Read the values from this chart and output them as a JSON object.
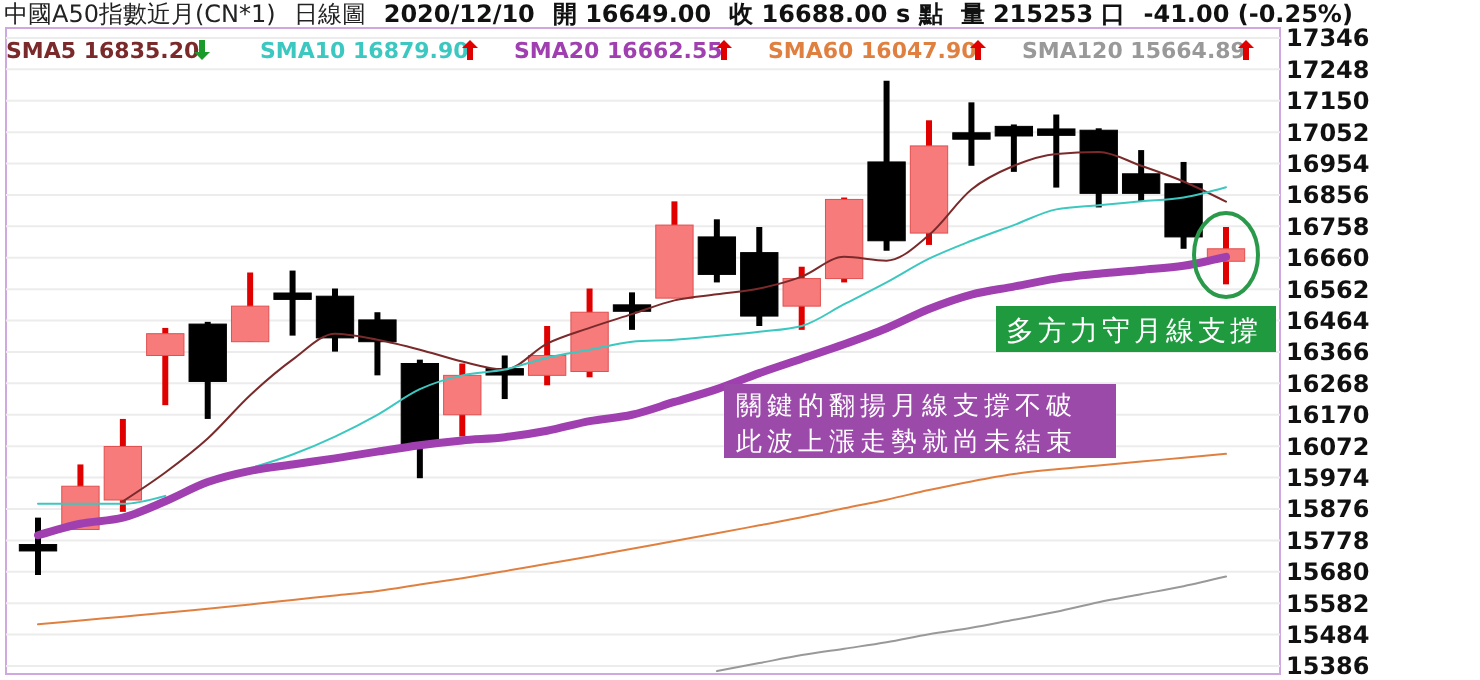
{
  "chart_data": {
    "type": "candlestick",
    "title": "中國A50指數近月(CN*1)",
    "subtitle": "日線圖",
    "annotations": [
      "2020/12/10",
      "開 16649.00",
      "收 16688.00 s 點",
      "量 215253 口",
      "-41.00 (-0.25%)",
      "關鍵的翻揚月線支撐不破",
      "此波上漲走勢就尚未結束",
      "多方力守月線支撐"
    ],
    "categories": [
      null,
      null,
      null,
      null,
      null,
      null,
      null,
      null,
      null,
      null,
      null,
      null,
      null,
      null,
      null,
      null,
      null,
      null,
      null,
      null,
      null,
      null,
      null,
      null,
      null,
      null,
      null,
      null,
      null
    ],
    "ohlc": [
      [
        15765,
        15849,
        15670,
        15745
      ],
      [
        15812,
        16015,
        15812,
        15947
      ],
      [
        15904,
        16157,
        15867,
        16071
      ],
      [
        16355,
        16441,
        16200,
        16423
      ],
      [
        16453,
        16460,
        16157,
        16274
      ],
      [
        16398,
        16614,
        16398,
        16509
      ],
      [
        16550,
        16620,
        16417,
        16530
      ],
      [
        16540,
        16564,
        16367,
        16410
      ],
      [
        16466,
        16490,
        16293,
        16398
      ],
      [
        16330,
        16342,
        15972,
        16077
      ],
      [
        16170,
        16330,
        16102,
        16293
      ],
      [
        16314,
        16355,
        16219,
        16294
      ],
      [
        16293,
        16447,
        16262,
        16355
      ],
      [
        16305,
        16564,
        16287,
        16490
      ],
      [
        16513,
        16552,
        16435,
        16493
      ],
      [
        16534,
        16836,
        16534,
        16762
      ],
      [
        16725,
        16780,
        16583,
        16608
      ],
      [
        16676,
        16756,
        16447,
        16478
      ],
      [
        16509,
        16632,
        16435,
        16595
      ],
      [
        16595,
        16848,
        16583,
        16842
      ],
      [
        16959,
        17212,
        16682,
        16713
      ],
      [
        16737,
        17089,
        16700,
        17009
      ],
      [
        17050,
        17145,
        16947,
        17030
      ],
      [
        17070,
        17076,
        16928,
        17040
      ],
      [
        17062,
        17107,
        16879,
        17042
      ],
      [
        17058,
        17064,
        16817,
        16861
      ],
      [
        16922,
        16996,
        16836,
        16861
      ],
      [
        16891,
        16959,
        16688,
        16725
      ],
      [
        16649,
        16756,
        16577,
        16688
      ]
    ],
    "series": [
      {
        "name": "SMA5 16835.20",
        "type": "line",
        "color": "#7a2a2a",
        "values": [
          null,
          null,
          15900,
          15990,
          16096,
          16231,
          16342,
          16423,
          16404,
          16373,
          16336,
          16311,
          16392,
          16441,
          16484,
          16527,
          16546,
          16564,
          16601,
          16663,
          16651,
          16731,
          16873,
          16947,
          16984,
          16990,
          16947,
          16898,
          16835
        ]
      },
      {
        "name": "SMA10 16879.90",
        "type": "line",
        "color": "#3cc8c0",
        "values": [
          15892,
          15892,
          15892,
          15917,
          null,
          16003,
          16046,
          16102,
          16170,
          16250,
          16293,
          16311,
          16348,
          16373,
          16398,
          16404,
          16416,
          16429,
          16447,
          16515,
          16583,
          16657,
          16713,
          16762,
          16811,
          16824,
          16836,
          16848,
          16880
        ]
      },
      {
        "name": "SMA20 16662.55",
        "type": "line",
        "color": "#a040b0",
        "values": [
          15794,
          15830,
          15849,
          15900,
          15960,
          15995,
          16015,
          16034,
          16055,
          16075,
          16090,
          16100,
          16120,
          16150,
          16170,
          16210,
          16250,
          16300,
          16345,
          16390,
          16440,
          16500,
          16545,
          16570,
          16595,
          16610,
          16622,
          16635,
          16663
        ]
      },
      {
        "name": "SMA60 16047.90",
        "type": "line",
        "color": "#e08040",
        "values": [
          15516,
          15528,
          15540,
          15552,
          15565,
          15578,
          15592,
          15606,
          15620,
          15640,
          15660,
          15682,
          15705,
          15728,
          15752,
          15776,
          15800,
          15825,
          15850,
          15878,
          15905,
          15935,
          15962,
          15985,
          16000,
          16012,
          16024,
          16036,
          16048
        ]
      },
      {
        "name": "SMA120 15664.89",
        "type": "line",
        "color": "#999999",
        "values": [
          null,
          null,
          null,
          null,
          null,
          null,
          null,
          null,
          null,
          null,
          null,
          null,
          null,
          null,
          null,
          null,
          15370,
          15395,
          15420,
          15440,
          15460,
          15485,
          15505,
          15530,
          15555,
          15585,
          15610,
          15635,
          15665
        ]
      }
    ],
    "ylim": [
      15361,
      17377
    ],
    "yticks": [
      15386,
      15484,
      15582,
      15680,
      15778,
      15876,
      15974,
      16072,
      16170,
      16268,
      16366,
      16464,
      16562,
      16660,
      16758,
      16856,
      16954,
      17052,
      17150,
      17248,
      17346
    ],
    "grid": "y",
    "legend": "top left",
    "tick_labels": "y"
  }
}
